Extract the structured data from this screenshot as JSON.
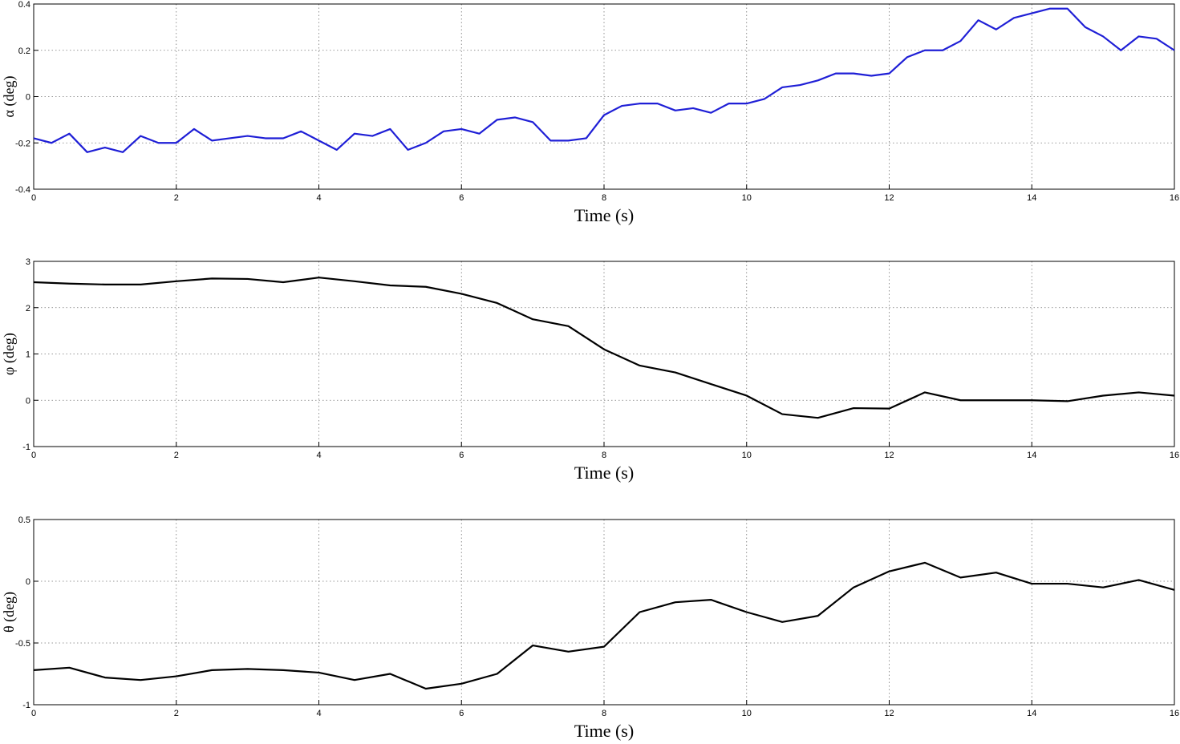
{
  "chart_data": [
    {
      "type": "line",
      "x_label": "Time (s)",
      "y_label": "α (deg)",
      "color": "#1f1fd6",
      "grid": true,
      "xlim": [
        0,
        16
      ],
      "xticks": [
        0,
        2,
        4,
        6,
        8,
        10,
        12,
        14,
        16
      ],
      "ylim": [
        -0.4,
        0.4
      ],
      "yticks": [
        -0.4,
        -0.2,
        0,
        0.2,
        0.4
      ],
      "x": [
        0,
        0.25,
        0.5,
        0.75,
        1,
        1.25,
        1.5,
        1.75,
        2,
        2.25,
        2.5,
        2.75,
        3,
        3.25,
        3.5,
        3.75,
        4,
        4.25,
        4.5,
        4.75,
        5,
        5.25,
        5.5,
        5.75,
        6,
        6.25,
        6.5,
        6.75,
        7,
        7.25,
        7.5,
        7.75,
        8,
        8.25,
        8.5,
        8.75,
        9,
        9.25,
        9.5,
        9.75,
        10,
        10.25,
        10.5,
        10.75,
        11,
        11.25,
        11.5,
        11.75,
        12,
        12.25,
        12.5,
        12.75,
        13,
        13.25,
        13.5,
        13.75,
        14,
        14.25,
        14.5,
        14.75,
        15,
        15.25,
        15.5,
        15.75,
        16
      ],
      "values": [
        -0.18,
        -0.2,
        -0.16,
        -0.24,
        -0.22,
        -0.24,
        -0.17,
        -0.2,
        -0.2,
        -0.14,
        -0.19,
        -0.18,
        -0.17,
        -0.18,
        -0.18,
        -0.15,
        -0.19,
        -0.23,
        -0.16,
        -0.17,
        -0.14,
        -0.23,
        -0.2,
        -0.15,
        -0.14,
        -0.16,
        -0.1,
        -0.09,
        -0.11,
        -0.19,
        -0.19,
        -0.18,
        -0.08,
        -0.04,
        -0.03,
        -0.03,
        -0.06,
        -0.05,
        -0.07,
        -0.03,
        -0.03,
        -0.01,
        0.04,
        0.05,
        0.07,
        0.1,
        0.1,
        0.09,
        0.1,
        0.17,
        0.2,
        0.2,
        0.24,
        0.33,
        0.29,
        0.34,
        0.36,
        0.38,
        0.38,
        0.3,
        0.26,
        0.2,
        0.26,
        0.25,
        0.2
      ]
    },
    {
      "type": "line",
      "x_label": "Time (s)",
      "y_label": "φ (deg)",
      "color": "#000000",
      "grid": true,
      "xlim": [
        0,
        16
      ],
      "xticks": [
        0,
        2,
        4,
        6,
        8,
        10,
        12,
        14,
        16
      ],
      "ylim": [
        -1,
        3
      ],
      "yticks": [
        -1,
        0,
        1,
        2,
        3
      ],
      "x": [
        0,
        0.5,
        1,
        1.5,
        2,
        2.5,
        3,
        3.5,
        4,
        4.5,
        5,
        5.5,
        6,
        6.5,
        7,
        7.5,
        8,
        8.5,
        9,
        9.5,
        10,
        10.5,
        11,
        11.5,
        12,
        12.5,
        13,
        13.5,
        14,
        14.5,
        15,
        15.5,
        16
      ],
      "values": [
        2.55,
        2.52,
        2.5,
        2.5,
        2.57,
        2.63,
        2.62,
        2.55,
        2.65,
        2.57,
        2.48,
        2.45,
        2.3,
        2.1,
        1.75,
        1.6,
        1.1,
        0.75,
        0.6,
        0.35,
        0.1,
        -0.3,
        -0.38,
        -0.17,
        -0.18,
        0.17,
        0,
        0,
        0,
        -0.02,
        0.1,
        0.17,
        0.1
      ]
    },
    {
      "type": "line",
      "x_label": "Time (s)",
      "y_label": "θ (deg)",
      "color": "#000000",
      "grid": true,
      "xlim": [
        0,
        16
      ],
      "xticks": [
        0,
        2,
        4,
        6,
        8,
        10,
        12,
        14,
        16
      ],
      "ylim": [
        -1,
        0.5
      ],
      "yticks": [
        -1,
        -0.5,
        0,
        0.5
      ],
      "x": [
        0,
        0.5,
        1,
        1.5,
        2,
        2.5,
        3,
        3.5,
        4,
        4.5,
        5,
        5.5,
        6,
        6.5,
        7,
        7.5,
        8,
        8.5,
        9,
        9.5,
        10,
        10.5,
        11,
        11.5,
        12,
        12.5,
        13,
        13.5,
        14,
        14.5,
        15,
        15.5,
        16
      ],
      "values": [
        -0.72,
        -0.7,
        -0.78,
        -0.8,
        -0.77,
        -0.72,
        -0.71,
        -0.72,
        -0.74,
        -0.8,
        -0.75,
        -0.87,
        -0.83,
        -0.75,
        -0.52,
        -0.57,
        -0.53,
        -0.25,
        -0.17,
        -0.15,
        -0.25,
        -0.33,
        -0.28,
        -0.05,
        0.08,
        0.15,
        0.03,
        0.07,
        -0.02,
        -0.02,
        -0.05,
        0.01,
        -0.07
      ]
    }
  ]
}
